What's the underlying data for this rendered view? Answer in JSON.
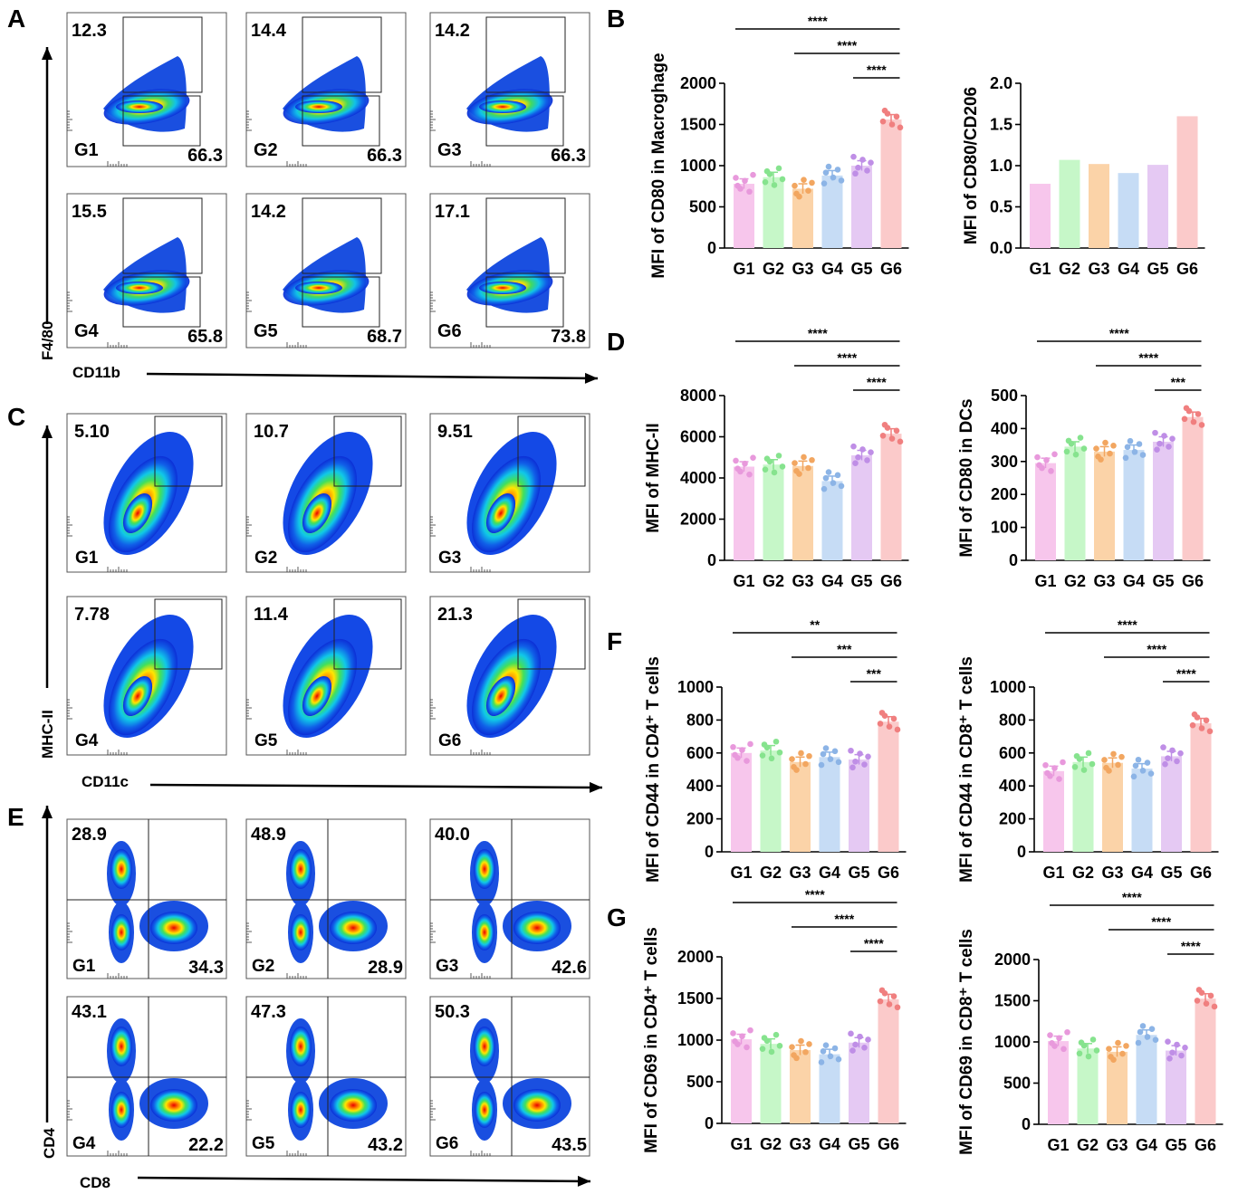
{
  "figure": {
    "panel_letters": [
      "A",
      "B",
      "C",
      "D",
      "E",
      "F",
      "G"
    ],
    "flow": [
      {
        "letter": "A",
        "x_label": "CD11b",
        "y_label": "F4/80",
        "groups": [
          "G1",
          "G2",
          "G3",
          "G4",
          "G5",
          "G6"
        ],
        "upper_values": [
          "12.3",
          "14.4",
          "14.2",
          "15.5",
          "14.2",
          "17.1"
        ],
        "lower_values": [
          "66.3",
          "66.3",
          "66.3",
          "65.8",
          "68.7",
          "73.8"
        ]
      },
      {
        "letter": "C",
        "x_label": "CD11c",
        "y_label": "MHC-II",
        "groups": [
          "G1",
          "G2",
          "G3",
          "G4",
          "G5",
          "G6"
        ],
        "values": [
          "5.10",
          "10.7",
          "9.51",
          "7.78",
          "11.4",
          "21.3"
        ]
      },
      {
        "letter": "E",
        "x_label": "CD8",
        "y_label": "CD4",
        "groups": [
          "G1",
          "G2",
          "G3",
          "G4",
          "G5",
          "G6"
        ],
        "ul_values": [
          "28.9",
          "48.9",
          "40.0",
          "43.1",
          "47.3",
          "50.3"
        ],
        "lr_values": [
          "34.3",
          "28.9",
          "42.6",
          "22.2",
          "43.2",
          "43.5"
        ]
      }
    ]
  },
  "chart_data": [
    {
      "id": "B1",
      "panel": "B",
      "type": "bar",
      "ylabel": "MFI of CD80 in Macroghage",
      "categories": [
        "G1",
        "G2",
        "G3",
        "G4",
        "G5",
        "G6"
      ],
      "values": [
        780,
        860,
        720,
        880,
        1000,
        1560
      ],
      "ylim": [
        0,
        2000
      ],
      "ticks": [
        "0",
        "500",
        "1000",
        "1500",
        "2000"
      ],
      "dots": true,
      "sig": [
        {
          "from": "G1",
          "to": "G6",
          "label": "****"
        },
        {
          "from": "G3",
          "to": "G6",
          "label": "****"
        },
        {
          "from": "G5",
          "to": "G6",
          "label": "****"
        }
      ]
    },
    {
      "id": "B2",
      "type": "bar",
      "ylabel": "MFI of CD80/CD206",
      "categories": [
        "G1",
        "G2",
        "G3",
        "G4",
        "G5",
        "G6"
      ],
      "values": [
        0.78,
        1.07,
        1.02,
        0.91,
        1.01,
        1.6
      ],
      "ylim": [
        0,
        2
      ],
      "ticks": [
        "0.0",
        "0.5",
        "1.0",
        "1.5",
        "2.0"
      ],
      "dots": false,
      "sig": []
    },
    {
      "id": "D1",
      "panel": "D",
      "type": "bar",
      "ylabel": "MFI of MHC-II",
      "categories": [
        "G1",
        "G2",
        "G3",
        "G4",
        "G5",
        "G6"
      ],
      "values": [
        4550,
        4650,
        4580,
        3850,
        5100,
        6150
      ],
      "ylim": [
        0,
        8000
      ],
      "ticks": [
        "0",
        "2000",
        "4000",
        "6000",
        "8000"
      ],
      "dots": true,
      "sig": [
        {
          "from": "G1",
          "to": "G6",
          "label": "****"
        },
        {
          "from": "G3",
          "to": "G6",
          "label": "****"
        },
        {
          "from": "G5",
          "to": "G6",
          "label": "****"
        }
      ]
    },
    {
      "id": "D2",
      "type": "bar",
      "ylabel": "MFI of CD80 in DCs",
      "categories": [
        "G1",
        "G2",
        "G3",
        "G4",
        "G5",
        "G6"
      ],
      "values": [
        295,
        345,
        330,
        335,
        360,
        435
      ],
      "ylim": [
        0,
        500
      ],
      "ticks": [
        "0",
        "100",
        "200",
        "300",
        "400",
        "500"
      ],
      "dots": true,
      "sig": [
        {
          "from": "G1",
          "to": "G6",
          "label": "****"
        },
        {
          "from": "G3",
          "to": "G6",
          "label": "****"
        },
        {
          "from": "G5",
          "to": "G6",
          "label": "***"
        }
      ]
    },
    {
      "id": "F1",
      "panel": "F",
      "type": "bar",
      "ylabel": "MFI of CD44 in CD4⁺ T cells",
      "categories": [
        "G1",
        "G2",
        "G3",
        "G4",
        "G5",
        "G6"
      ],
      "values": [
        600,
        615,
        545,
        575,
        560,
        790
      ],
      "ylim": [
        0,
        1000
      ],
      "ticks": [
        "0",
        "200",
        "400",
        "600",
        "800",
        "1000"
      ],
      "dots": true,
      "sig": [
        {
          "from": "G1",
          "to": "G6",
          "label": "**"
        },
        {
          "from": "G3",
          "to": "G6",
          "label": "***"
        },
        {
          "from": "G5",
          "to": "G6",
          "label": "***"
        }
      ]
    },
    {
      "id": "F2",
      "type": "bar",
      "ylabel": "MFI of CD44 in CD8⁺ T cells",
      "categories": [
        "G1",
        "G2",
        "G3",
        "G4",
        "G5",
        "G6"
      ],
      "values": [
        490,
        545,
        540,
        505,
        580,
        780
      ],
      "ylim": [
        0,
        1000
      ],
      "ticks": [
        "0",
        "200",
        "400",
        "600",
        "800",
        "1000"
      ],
      "dots": true,
      "sig": [
        {
          "from": "G1",
          "to": "G6",
          "label": "****"
        },
        {
          "from": "G3",
          "to": "G6",
          "label": "****"
        },
        {
          "from": "G5",
          "to": "G6",
          "label": "****"
        }
      ]
    },
    {
      "id": "G1",
      "panel": "G",
      "type": "bar",
      "ylabel": "MFI of CD69 in CD4⁺ T cells",
      "categories": [
        "G1",
        "G2",
        "G3",
        "G4",
        "G5",
        "G6"
      ],
      "values": [
        1010,
        955,
        880,
        830,
        970,
        1490
      ],
      "ylim": [
        0,
        2000
      ],
      "ticks": [
        "0",
        "500",
        "1000",
        "1500",
        "2000"
      ],
      "dots": true,
      "sig": [
        {
          "from": "G1",
          "to": "G6",
          "label": "****"
        },
        {
          "from": "G3",
          "to": "G6",
          "label": "****"
        },
        {
          "from": "G5",
          "to": "G6",
          "label": "****"
        }
      ]
    },
    {
      "id": "G2",
      "type": "bar",
      "ylabel": "MFI of CD69 in CD8⁺ T cells",
      "categories": [
        "G1",
        "G2",
        "G3",
        "G4",
        "G5",
        "G6"
      ],
      "values": [
        1010,
        920,
        880,
        1085,
        895,
        1525
      ],
      "ylim": [
        0,
        2000
      ],
      "ticks": [
        "0",
        "500",
        "1000",
        "1500",
        "2000"
      ],
      "dots": true,
      "sig": [
        {
          "from": "G1",
          "to": "G6",
          "label": "****"
        },
        {
          "from": "G3",
          "to": "G6",
          "label": "****"
        },
        {
          "from": "G5",
          "to": "G6",
          "label": "****"
        }
      ]
    }
  ],
  "colors": {
    "bars": [
      "#f7c6ec",
      "#c6f7c8",
      "#fbd3a8",
      "#c6dcf5",
      "#e5c9f3",
      "#fbcaca"
    ],
    "dots": [
      "#e899dc",
      "#86e38e",
      "#f2a660",
      "#8cb4e6",
      "#bf8ee6",
      "#f07f7f"
    ]
  }
}
